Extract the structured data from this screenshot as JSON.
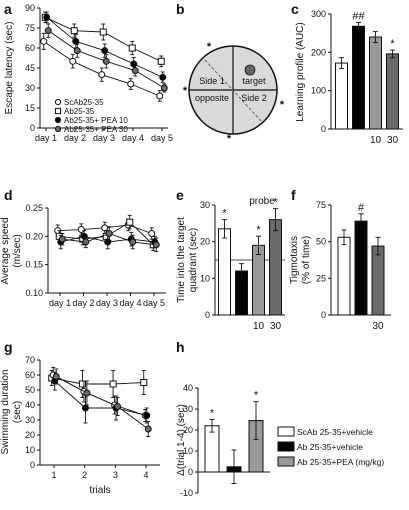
{
  "panel_letters": [
    "a",
    "b",
    "c",
    "d",
    "e",
    "f",
    "g",
    "h"
  ],
  "b_maze": {
    "labels": [
      "Side 1",
      "target",
      "opposite",
      "Side 2"
    ],
    "markers": [
      "*",
      "*",
      "*",
      "*"
    ]
  },
  "colors": {
    "scab": "#ffffff",
    "ab": "#000000",
    "pea10": "#9a9a9a",
    "pea30": "#6b6b6b",
    "stroke": "#111111",
    "maze_bg": "#d9d9d9",
    "target_dot": "#666666"
  },
  "chart_data": [
    {
      "id": "a",
      "type": "line",
      "ylabel": "Escape latency (sec)",
      "ylim": [
        0,
        90
      ],
      "yticks": [
        0,
        15,
        30,
        45,
        60,
        75,
        90
      ],
      "categories": [
        "day 1",
        "day 2",
        "day 3",
        "day 4",
        "day 5"
      ],
      "legend": "bottom-left",
      "series": [
        {
          "name": "ScAb25-35",
          "marker": "open-circle",
          "values": [
            65,
            50,
            40,
            33,
            24
          ],
          "errors": [
            6,
            5,
            5,
            4,
            4
          ]
        },
        {
          "name": "Ab25-35",
          "marker": "open-square",
          "values": [
            83,
            73,
            72,
            60,
            50
          ],
          "errors": [
            4,
            5,
            6,
            5,
            4
          ]
        },
        {
          "name": "Ab25-35+ PEA 10",
          "marker": "filled-circle",
          "values": [
            83,
            65,
            58,
            48,
            38
          ],
          "errors": [
            4,
            5,
            5,
            5,
            4
          ]
        },
        {
          "name": "Ab25-35+ PEA 30",
          "marker": "gray-circle",
          "values": [
            73,
            58,
            50,
            43,
            30
          ],
          "errors": [
            5,
            5,
            5,
            4,
            3
          ]
        }
      ]
    },
    {
      "id": "c",
      "type": "bar",
      "ylabel": "Learning profile (AUC)",
      "ylim": [
        0,
        300
      ],
      "yticks": [
        0,
        100,
        200,
        300
      ],
      "values": [
        172,
        268,
        240,
        196
      ],
      "errors": [
        14,
        10,
        14,
        10
      ],
      "fills": [
        "scab",
        "ab",
        "pea10",
        "pea30"
      ],
      "annotations": [
        "",
        "##",
        "",
        "*"
      ],
      "xlabels": [
        "",
        "",
        "10",
        "30"
      ]
    },
    {
      "id": "d",
      "type": "line",
      "ylabel": "Average speed",
      "yunit": "(m/sec)",
      "ylim": [
        0.1,
        0.25
      ],
      "yticks": [
        "0.10",
        "0.15",
        "0.20",
        "0.25"
      ],
      "categories": [
        "day 1",
        "day 2",
        "day 3",
        "day 4",
        "day 5"
      ],
      "series": [
        {
          "marker": "open-circle",
          "values": [
            0.21,
            0.212,
            0.215,
            0.22,
            0.205
          ],
          "errors": [
            0.01,
            0.01,
            0.01,
            0.01,
            0.01
          ]
        },
        {
          "marker": "open-square",
          "values": [
            0.2,
            0.195,
            0.2,
            0.225,
            0.185
          ],
          "errors": [
            0.01,
            0.01,
            0.01,
            0.012,
            0.01
          ]
        },
        {
          "marker": "filled-circle",
          "values": [
            0.19,
            0.2,
            0.19,
            0.195,
            0.19
          ],
          "errors": [
            0.012,
            0.01,
            0.012,
            0.012,
            0.01
          ]
        },
        {
          "marker": "gray-circle",
          "values": [
            0.195,
            0.19,
            0.205,
            0.19,
            0.185
          ],
          "errors": [
            0.01,
            0.01,
            0.012,
            0.012,
            0.012
          ]
        }
      ]
    },
    {
      "id": "e",
      "type": "bar",
      "title": "probe",
      "ylabel": "Time into the target",
      "ylabel2": "quadrant (sec)",
      "ylim": [
        0,
        30
      ],
      "yticks": [
        0,
        10,
        20,
        30
      ],
      "reference_line": 15,
      "values": [
        23.5,
        12,
        19,
        26
      ],
      "errors": [
        2.5,
        2,
        2.5,
        3
      ],
      "fills": [
        "scab",
        "ab",
        "pea10",
        "pea30"
      ],
      "annotations": [
        "*",
        "",
        "*",
        "*"
      ],
      "xlabels": [
        "",
        "",
        "10",
        "30"
      ]
    },
    {
      "id": "f",
      "type": "bar",
      "ylabel": "Tigmotaxis",
      "yunit": "(% of time)",
      "ylim": [
        0,
        75
      ],
      "yticks": [
        0,
        25,
        50,
        75
      ],
      "values": [
        53,
        64,
        47
      ],
      "errors": [
        5,
        5,
        6
      ],
      "fills": [
        "scab",
        "ab",
        "pea30"
      ],
      "annotations": [
        "",
        "#",
        ""
      ],
      "xlabels": [
        "",
        "",
        "30"
      ]
    },
    {
      "id": "g",
      "type": "line",
      "ylabel": "Swimming duration",
      "yunit": "(sec)",
      "xlabel": "trials",
      "ylim": [
        0,
        70
      ],
      "yticks": [
        0,
        10,
        20,
        30,
        40,
        50,
        60,
        70
      ],
      "x": [
        1,
        2,
        3,
        4
      ],
      "series": [
        {
          "marker": "open-square",
          "values": [
            58,
            54,
            54,
            55
          ],
          "errors": [
            5,
            9,
            9,
            8
          ]
        },
        {
          "marker": "open-circle",
          "values": [
            60,
            49,
            40,
            33
          ],
          "errors": [
            5,
            7,
            6,
            4
          ]
        },
        {
          "marker": "filled-circle",
          "values": [
            56,
            38,
            38,
            33
          ],
          "errors": [
            6,
            10,
            8,
            5
          ]
        },
        {
          "marker": "gray-circle",
          "values": [
            59,
            48,
            39,
            24
          ],
          "errors": [
            5,
            8,
            6,
            5
          ]
        }
      ]
    },
    {
      "id": "h",
      "type": "bar",
      "ylabel": "Δ(trial 1-4) (sec)",
      "ylim": [
        -10,
        40
      ],
      "yticks": [
        -10,
        0,
        10,
        20,
        30,
        40
      ],
      "values": [
        22,
        2.5,
        24.5
      ],
      "errors": [
        3,
        8,
        9
      ],
      "fills": [
        "scab",
        "ab",
        "pea10"
      ],
      "annotations": [
        "*",
        "",
        "*"
      ],
      "legend": [
        {
          "label": "ScAb 25-35+vehicle",
          "fill": "scab"
        },
        {
          "label": "Ab 25-35+vehicle",
          "fill": "ab"
        },
        {
          "label": "Ab 25-35+PEA (mg/kg)",
          "fill": "pea10"
        }
      ]
    }
  ]
}
